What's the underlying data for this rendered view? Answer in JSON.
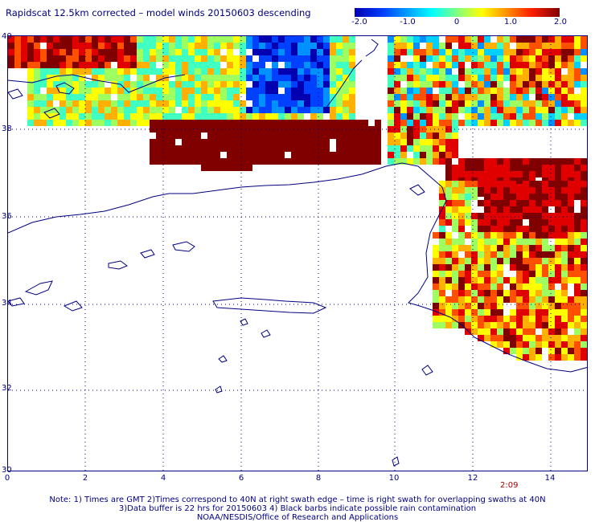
{
  "title": "Rapidscat 12.5km corrected – model winds 20150603 descending",
  "colorbar": {
    "labels": [
      "-2.0",
      "-1.0",
      "0",
      "1.0",
      "2.0"
    ],
    "min": -2.0,
    "max": 2.0
  },
  "axes": {
    "x_ticks": [
      "0",
      "2",
      "4",
      "6",
      "8",
      "10",
      "12",
      "14"
    ],
    "y_ticks": [
      "40",
      "38",
      "36",
      "34",
      "32",
      "30"
    ]
  },
  "timestamp": "2:09",
  "notes": [
    "Note: 1) Times are GMT 2)Times correspond to 40N at right swath edge – time is right swath for overlapping swaths at 40N",
    "3)Data buffer is 22 hrs for 20150603 4) Black barbs indicate possible rain contamination",
    "NOAA/NESDIS/Office of Research and Applications"
  ],
  "colors": {
    "text": "#000080",
    "coast": "#000080",
    "grid": "#000080",
    "timestamp": "#a00000"
  }
}
